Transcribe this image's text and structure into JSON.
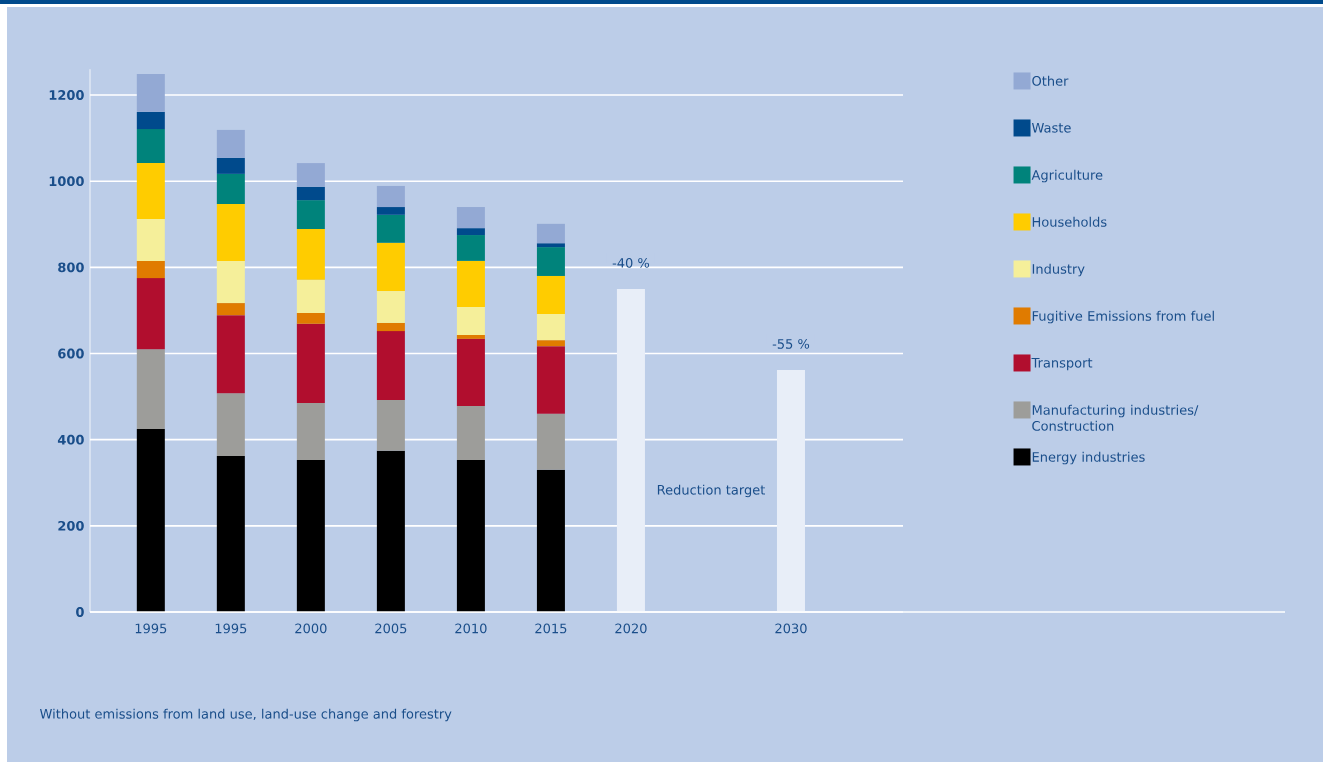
{
  "chart_data": {
    "type": "bar",
    "stacked": true,
    "categories": [
      "1995",
      "1995",
      "2000",
      "2005",
      "2010",
      "2015",
      "2020",
      null,
      "2030"
    ],
    "series": [
      {
        "name": "Energy industries",
        "color": "#000000",
        "values": [
          425,
          362,
          353,
          374,
          353,
          330,
          null,
          null,
          null
        ]
      },
      {
        "name": "Manufacturing industries/ Construction",
        "color": "#9d9d9a",
        "values": [
          185,
          146,
          132,
          118,
          125,
          130,
          null,
          null,
          null
        ]
      },
      {
        "name": "Transport",
        "color": "#b10e2e",
        "values": [
          165,
          181,
          184,
          160,
          156,
          157,
          null,
          null,
          null
        ]
      },
      {
        "name": "Fugitive Emissions from fuel",
        "color": "#e07b00",
        "values": [
          40,
          28,
          25,
          19,
          9,
          14,
          null,
          null,
          null
        ]
      },
      {
        "name": "Industry",
        "color": "#f5ef9a",
        "values": [
          97,
          98,
          77,
          74,
          65,
          61,
          null,
          null,
          null
        ]
      },
      {
        "name": "Households",
        "color": "#ffcc00",
        "values": [
          130,
          132,
          118,
          112,
          107,
          88,
          null,
          null,
          null
        ]
      },
      {
        "name": "Agriculture",
        "color": "#00837b",
        "values": [
          79,
          70,
          67,
          65,
          60,
          67,
          null,
          null,
          null
        ]
      },
      {
        "name": "Waste",
        "color": "#004a8c",
        "values": [
          40,
          37,
          31,
          18,
          16,
          9,
          null,
          null,
          null
        ]
      },
      {
        "name": "Other",
        "color": "#93a9d4",
        "values": [
          88,
          65,
          55,
          49,
          49,
          45,
          null,
          null,
          null
        ]
      },
      {
        "color": "#e8eef8",
        "values": [
          null,
          null,
          null,
          null,
          null,
          null,
          750,
          null,
          562
        ]
      }
    ],
    "ylim": [
      0,
      1260
    ],
    "yticks": [
      0,
      200,
      400,
      600,
      800,
      1000,
      1200
    ],
    "grid": "y",
    "legend": "right",
    "annotations": [
      "-40 %",
      "-55 %",
      "Reduction target",
      "Without emissions from land use, land-use change and forestry"
    ]
  }
}
